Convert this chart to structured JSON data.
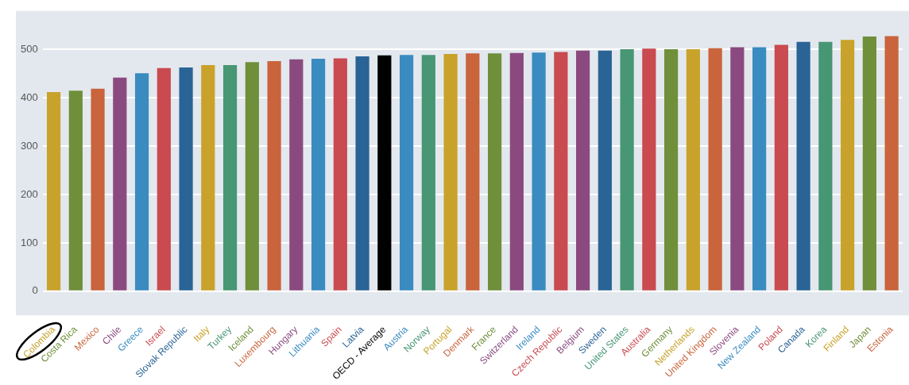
{
  "chart_data": {
    "type": "bar",
    "categories": [
      "Colombia",
      "Costa Rica",
      "Mexico",
      "Chile",
      "Greece",
      "Israel",
      "Slovak Republic",
      "Italy",
      "Turkey",
      "Iceland",
      "Luxembourg",
      "Hungary",
      "Lithuania",
      "Spain",
      "Latvia",
      "OECD - Average",
      "Austria",
      "Norway",
      "Portugal",
      "Denmark",
      "France",
      "Switzerland",
      "Ireland",
      "Czech Republic",
      "Belgium",
      "Sweden",
      "United States",
      "Australia",
      "Germany",
      "Netherlands",
      "United Kingdom",
      "Slovenia",
      "New Zealand",
      "Poland",
      "Canada",
      "Korea",
      "Finland",
      "Japan",
      "Estonia"
    ],
    "values": [
      412,
      415,
      419,
      442,
      451,
      462,
      463,
      468,
      468,
      474,
      476,
      480,
      481,
      482,
      486,
      488,
      489,
      489,
      491,
      492,
      492,
      493,
      494,
      495,
      498,
      498,
      501,
      502,
      501,
      501,
      503,
      505,
      505,
      510,
      516,
      516,
      520,
      527,
      528
    ],
    "colors": [
      "#c8a22a",
      "#6f8f3a",
      "#c9643c",
      "#8b4a7f",
      "#3a8bc0",
      "#c94a4f",
      "#2a6496",
      "#c8a22a",
      "#479674",
      "#6f8f3a",
      "#c9643c",
      "#8b4a7f",
      "#3a8bc0",
      "#c94a4f",
      "#2a6496",
      "#000000",
      "#3a8bc0",
      "#479674",
      "#c8a22a",
      "#c9643c",
      "#6f8f3a",
      "#8b4a7f",
      "#3a8bc0",
      "#c94a4f",
      "#8b4a7f",
      "#2a6496",
      "#479674",
      "#c94a4f",
      "#6f8f3a",
      "#c8a22a",
      "#c9643c",
      "#8b4a7f",
      "#3a8bc0",
      "#c94a4f",
      "#2a6496",
      "#479674",
      "#c8a22a",
      "#6f8f3a",
      "#c9643c"
    ],
    "ylim": [
      -50,
      580
    ],
    "yticks": [
      0,
      100,
      200,
      300,
      400,
      500
    ],
    "grid": "y",
    "legend": false
  }
}
